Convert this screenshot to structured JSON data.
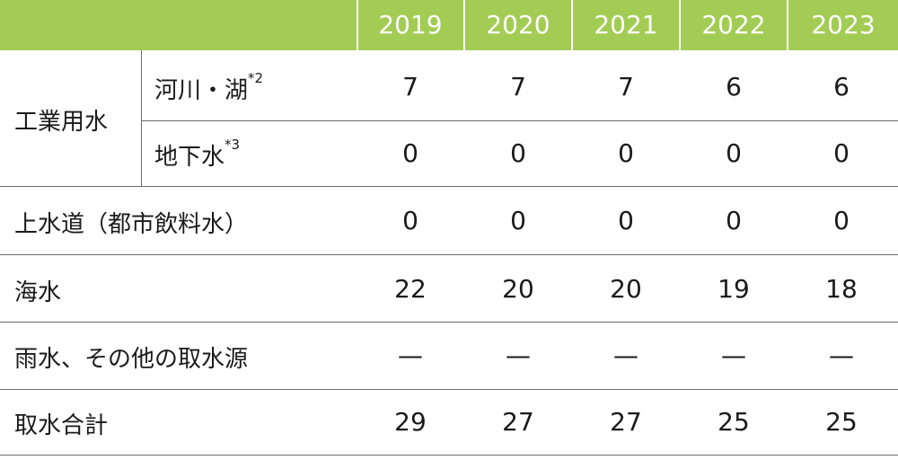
{
  "header": {
    "years": [
      "2019",
      "2020",
      "2021",
      "2022",
      "2023"
    ]
  },
  "rows": {
    "industrial": {
      "label": "工業用水",
      "sub_rivers": {
        "label": "河川・湖",
        "note": "*2",
        "values": [
          "7",
          "7",
          "7",
          "6",
          "6"
        ]
      },
      "sub_ground": {
        "label": "地下水",
        "note": "*3",
        "values": [
          "0",
          "0",
          "0",
          "0",
          "0"
        ]
      }
    },
    "municipal": {
      "label": "上水道（都市飲料水）",
      "values": [
        "0",
        "0",
        "0",
        "0",
        "0"
      ]
    },
    "seawater": {
      "label": "海水",
      "values": [
        "22",
        "20",
        "20",
        "19",
        "18"
      ]
    },
    "other": {
      "label": "雨水、その他の取水源",
      "values": [
        "—",
        "—",
        "—",
        "—",
        "—"
      ]
    },
    "total": {
      "label": "取水合計",
      "values": [
        "29",
        "27",
        "27",
        "25",
        "25"
      ]
    }
  },
  "colors": {
    "header_bg": "#a3cc55",
    "header_text": "#ffffff",
    "rule": "#6b6b6b"
  }
}
